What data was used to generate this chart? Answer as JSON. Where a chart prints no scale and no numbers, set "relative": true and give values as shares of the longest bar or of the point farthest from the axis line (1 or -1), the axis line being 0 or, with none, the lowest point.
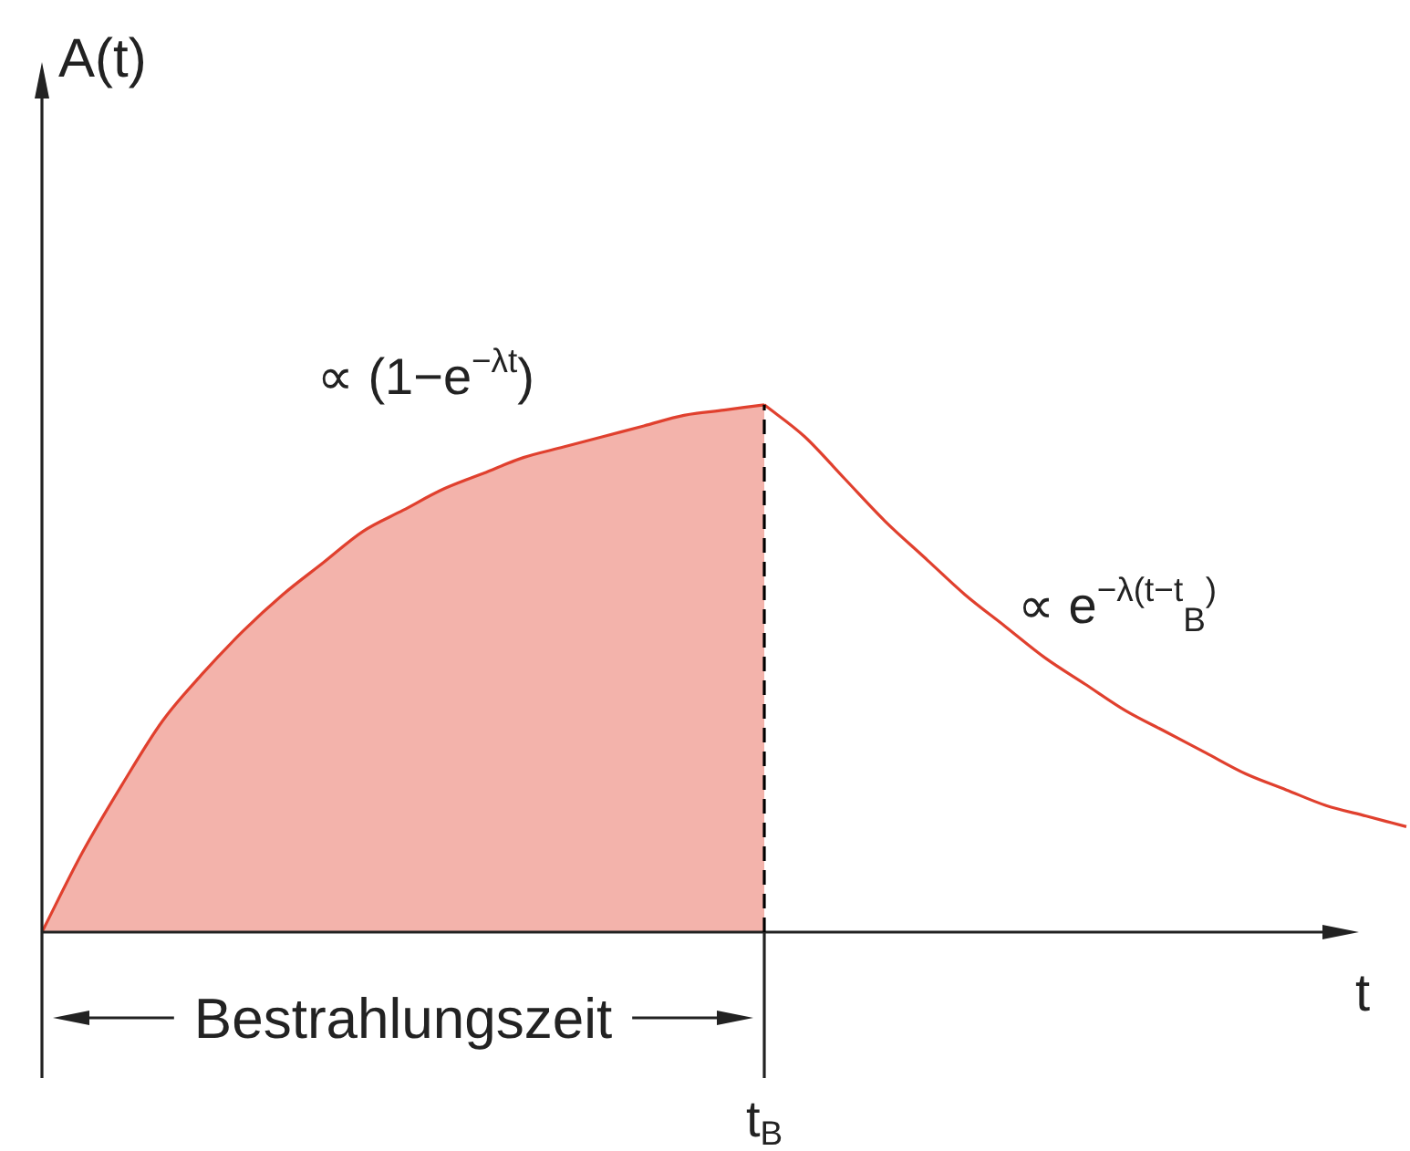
{
  "chart_data": {
    "type": "area",
    "xlabel": "t",
    "relative": true,
    "categories": [
      null,
      null,
      null,
      null,
      null,
      null,
      null,
      null,
      null,
      null,
      null,
      null,
      null,
      null,
      null,
      null,
      null,
      null,
      null,
      null,
      null,
      null,
      null,
      null,
      null,
      null,
      null,
      null,
      null,
      null,
      null,
      null,
      null,
      null,
      null
    ],
    "series": [
      {
        "name": "∝ (1−e$^{−λt}$)",
        "type": "area",
        "color": "#e0402e",
        "values": [
          0,
          0.15,
          0.28,
          0.4,
          0.49,
          0.57,
          0.64,
          0.7,
          0.76,
          0.8,
          0.84,
          0.87,
          0.9,
          0.92,
          0.94,
          0.96,
          0.98,
          0.99,
          1,
          null,
          null,
          null,
          null,
          null,
          null,
          null,
          null,
          null,
          null,
          null,
          null,
          null,
          null,
          null,
          null
        ]
      },
      {
        "name": "∝ e$^{−λ(t−t}$$_{B}$$^{)}$",
        "type": "line",
        "color": "#e0402e",
        "values": [
          null,
          null,
          null,
          null,
          null,
          null,
          null,
          null,
          null,
          null,
          null,
          null,
          null,
          null,
          null,
          null,
          null,
          null,
          1,
          0.94,
          0.86,
          0.78,
          0.71,
          0.64,
          0.58,
          0.52,
          0.47,
          0.42,
          0.38,
          0.34,
          0.3,
          0.27,
          0.24,
          0.22,
          0.2
        ]
      }
    ],
    "ref_lines": [
      {
        "axis": "x",
        "value": "t$_{B}$",
        "line_style": "dashed",
        "color": "#000000"
      }
    ],
    "annotations": [
      "A(t)",
      "Bestrahlungszeit"
    ]
  }
}
